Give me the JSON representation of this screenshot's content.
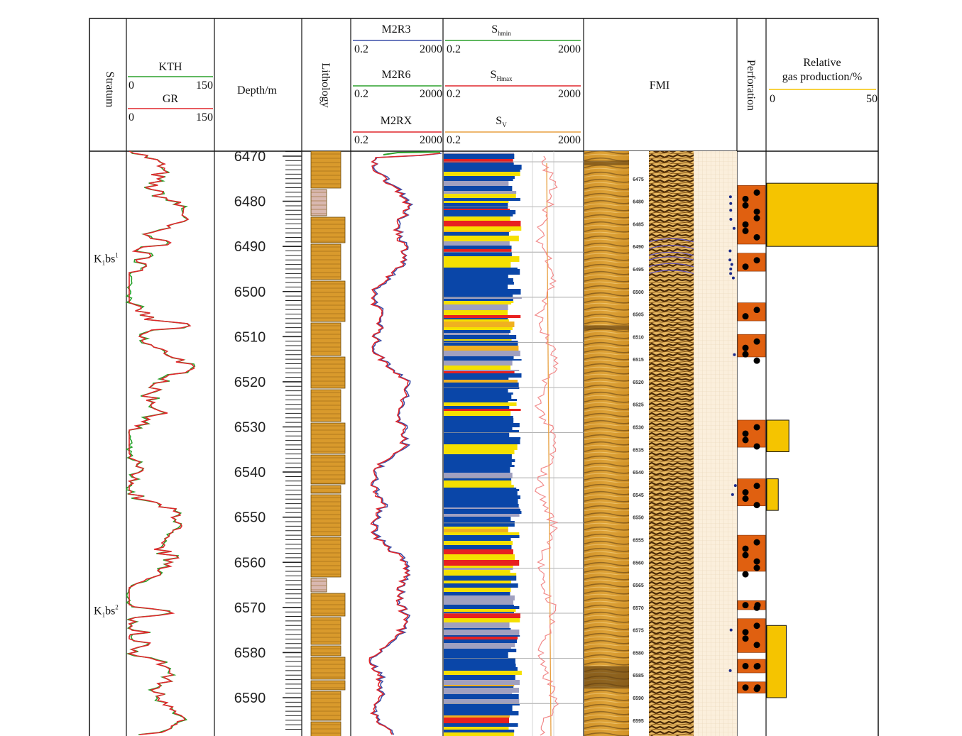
{
  "chart_data": {
    "type": "well-log",
    "columns": {
      "stratum": "Stratum",
      "gr_track": {
        "curves": [
          {
            "name": "KTH",
            "min": "0",
            "max": "150",
            "color": "#2ca02c"
          },
          {
            "name": "GR",
            "min": "0",
            "max": "150",
            "color": "#e0262b"
          }
        ]
      },
      "depth": "Depth/m",
      "lithology": "Lithology",
      "resistivity": {
        "curves": [
          {
            "name": "M2R3",
            "min": "0.2",
            "max": "2000",
            "color": "#3a4ea8"
          },
          {
            "name": "M2R6",
            "min": "0.2",
            "max": "2000",
            "color": "#2ca02c"
          },
          {
            "name": "M2RX",
            "min": "0.2",
            "max": "2000",
            "color": "#e0262b"
          }
        ]
      },
      "stress": {
        "curves": [
          {
            "name": "S",
            "sub": "hmin",
            "min": "0.2",
            "max": "2000",
            "color": "#2ca02c"
          },
          {
            "name": "S",
            "sub": "Hmax",
            "min": "0.2",
            "max": "2000",
            "color": "#e0262b"
          },
          {
            "name": "S",
            "sub": "V",
            "min": "0.2",
            "max": "2000",
            "color": "#e8a040"
          }
        ]
      },
      "fmi": "FMI",
      "perforation": "Perforation",
      "gas": {
        "label_line1": "Relative",
        "label_line2": "gas production/%",
        "min": "0",
        "max": "50",
        "color": "#f5c400"
      }
    },
    "strata": [
      {
        "name": "K",
        "sub": "1",
        "rest": "bs",
        "sup": "1",
        "depth": 6494
      },
      {
        "name": "K",
        "sub": "1",
        "rest": "bs",
        "sup": "2",
        "depth": 6572
      }
    ],
    "depth_range": [
      6470,
      6597
    ],
    "depth_ticks": [
      6470,
      6480,
      6490,
      6500,
      6510,
      6520,
      6530,
      6540,
      6550,
      6560,
      6570,
      6580,
      6590
    ],
    "fmi_ticks": [
      6475,
      6480,
      6485,
      6490,
      6495,
      6500,
      6505,
      6510,
      6515,
      6520,
      6525,
      6530,
      6535,
      6540,
      6545,
      6550,
      6555,
      6560,
      6565,
      6570,
      6575,
      6580,
      6585,
      6590,
      6595
    ],
    "perforations": [
      {
        "top": 6476.5,
        "bottom": 6489.5
      },
      {
        "top": 6491.5,
        "bottom": 6495.5
      },
      {
        "top": 6502.5,
        "bottom": 6506.5
      },
      {
        "top": 6509.5,
        "bottom": 6514.5
      },
      {
        "top": 6528.5,
        "bottom": 6534.5
      },
      {
        "top": 6541.5,
        "bottom": 6547.5
      },
      {
        "top": 6554,
        "bottom": 6562
      },
      {
        "top": 6568.5,
        "bottom": 6570.5
      },
      {
        "top": 6572.5,
        "bottom": 6580
      },
      {
        "top": 6581.5,
        "bottom": 6584.5
      },
      {
        "top": 6586.5,
        "bottom": 6589
      }
    ],
    "gas_production": [
      {
        "top": 6476,
        "bottom": 6490,
        "value": 50
      },
      {
        "top": 6528.5,
        "bottom": 6535.5,
        "value": 10
      },
      {
        "top": 6541.5,
        "bottom": 6548.5,
        "value": 5.2
      },
      {
        "top": 6574,
        "bottom": 6590,
        "value": 8.8
      }
    ]
  }
}
